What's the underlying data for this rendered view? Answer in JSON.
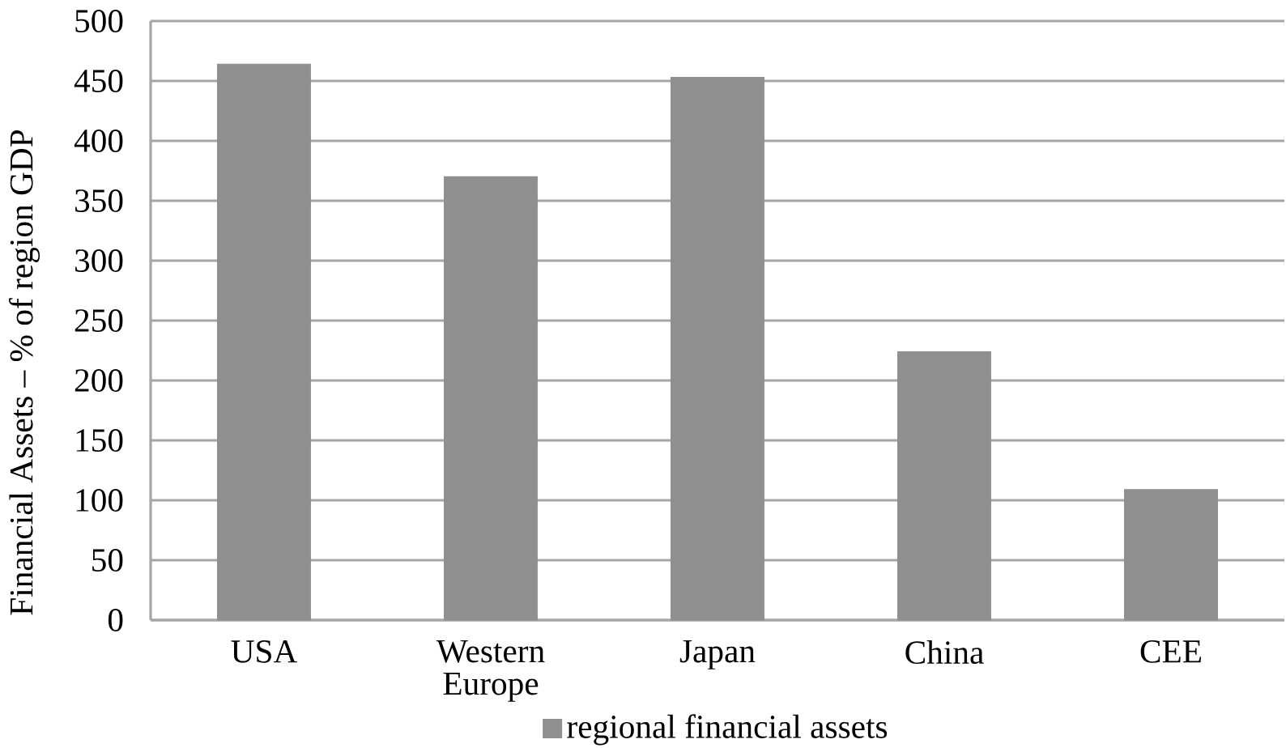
{
  "chart_data": {
    "type": "bar",
    "ylabel": "Financial Assets – % of region GDP",
    "categories": [
      "USA",
      "Western Europe",
      "Japan",
      "China",
      "CEE"
    ],
    "series": [
      {
        "name": "regional financial assets",
        "color": "#8f8f8f",
        "values": [
          464,
          370,
          453,
          224,
          109
        ]
      }
    ],
    "ylim": [
      0,
      500
    ],
    "yticks": [
      0,
      50,
      100,
      150,
      200,
      250,
      300,
      350,
      400,
      450,
      500
    ],
    "grid": "y",
    "legend": "bottom"
  }
}
